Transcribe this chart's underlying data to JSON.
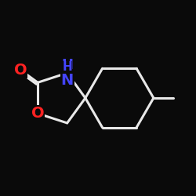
{
  "background_color": "#0a0a0a",
  "bond_color": "#e8e8e8",
  "nitrogen_color": "#4444ff",
  "oxygen_color": "#ff2222",
  "font_size_atom": 14,
  "line_width": 2.2,
  "figsize": [
    2.5,
    2.5
  ],
  "dpi": 100,
  "xlim": [
    0.0,
    1.0
  ],
  "ylim": [
    0.05,
    0.95
  ]
}
